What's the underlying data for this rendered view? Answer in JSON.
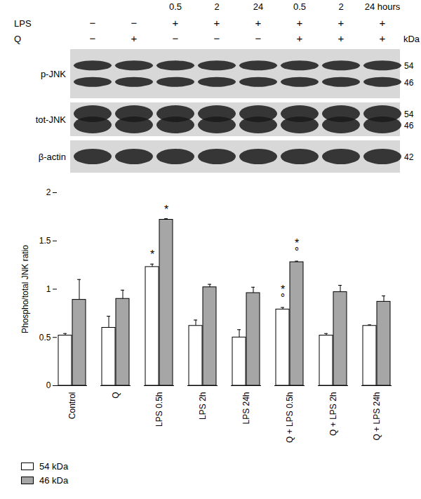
{
  "blot": {
    "time_labels": [
      null,
      null,
      "0.5",
      "2",
      "24",
      "0.5",
      "2",
      "24 hours"
    ],
    "rows": [
      {
        "label": "LPS",
        "values": [
          "−",
          "−",
          "+",
          "+",
          "+",
          "+",
          "+",
          "+"
        ]
      },
      {
        "label": "Q",
        "values": [
          "−",
          "+",
          "−",
          "−",
          "−",
          "+",
          "+",
          "+"
        ]
      }
    ],
    "unit_label": "kDa",
    "panels": [
      {
        "label": "p-JNK",
        "markers": [
          54,
          46
        ]
      },
      {
        "label": "tot-JNK",
        "markers": [
          54,
          46
        ]
      },
      {
        "label": "β-actin",
        "markers": [
          42
        ]
      }
    ]
  },
  "chart_data": {
    "type": "bar",
    "categories": [
      "Control",
      "Q",
      "LPS 0.5h",
      "LPS 2h",
      "LPS 24h",
      "Q + LPS 0.5h",
      "Q + LPS 2h",
      "Q + LPS 24h"
    ],
    "ylabel": "Phospho/total JNK ratio",
    "ylim": [
      0,
      2
    ],
    "yticks": [
      0,
      0.5,
      1,
      1.5,
      2
    ],
    "legend": "bottom-left",
    "series": [
      {
        "name": "54 kDa",
        "color": "#ffffff",
        "values": [
          0.52,
          0.6,
          1.23,
          0.62,
          0.5,
          0.79,
          0.52,
          0.62
        ],
        "errors": [
          0.02,
          0.12,
          0.03,
          0.06,
          0.08,
          0.02,
          0.02,
          0.01
        ]
      },
      {
        "name": "46 kDa",
        "color": "#a6a6a6",
        "values": [
          0.89,
          0.9,
          1.72,
          1.02,
          0.96,
          1.28,
          0.97,
          0.87
        ],
        "errors": [
          0.21,
          0.09,
          0.01,
          0.03,
          0.06,
          0.01,
          0.07,
          0.06
        ]
      }
    ],
    "annotations": [
      {
        "category": "LPS 0.5h",
        "series": "54 kDa",
        "text": "*"
      },
      {
        "category": "LPS 0.5h",
        "series": "46 kDa",
        "text": "*"
      },
      {
        "category": "Q + LPS 0.5h",
        "series": "54 kDa",
        "text": "°"
      },
      {
        "category": "Q + LPS 0.5h",
        "series": "54 kDa",
        "text": "*"
      },
      {
        "category": "Q + LPS 0.5h",
        "series": "46 kDa",
        "text": "°"
      },
      {
        "category": "Q + LPS 0.5h",
        "series": "46 kDa",
        "text": "*"
      }
    ]
  }
}
